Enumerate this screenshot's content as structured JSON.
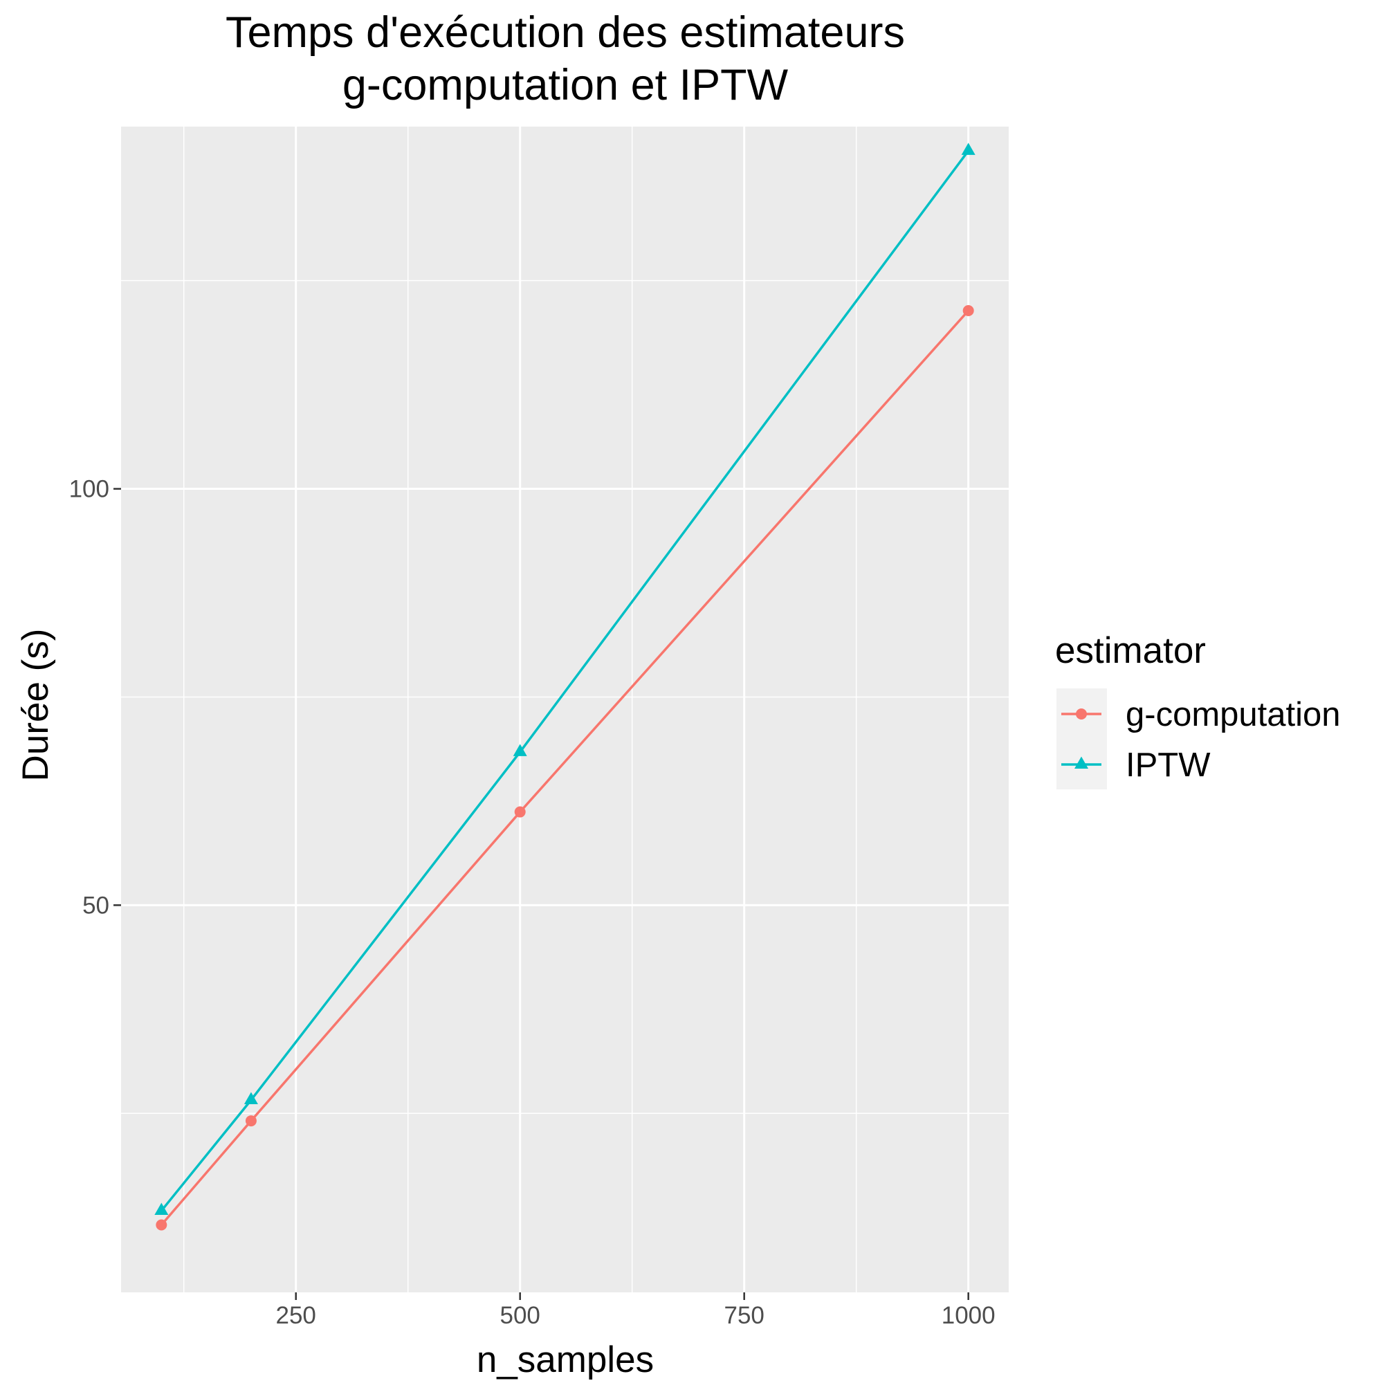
{
  "chart_data": {
    "type": "line",
    "title_lines": [
      "Temps d'exécution des estimateurs",
      "g-computation et IPTW"
    ],
    "xlabel": "n_samples",
    "ylabel": "Durée (s)",
    "x": [
      100,
      200,
      500,
      1000
    ],
    "xlim": [
      55,
      1045
    ],
    "ylim": [
      3.5,
      143.5
    ],
    "x_ticks": [
      250,
      500,
      750,
      1000
    ],
    "x_tick_labels": [
      "250",
      "500",
      "750",
      "1000"
    ],
    "x_minor_ticks": [
      125,
      375,
      625,
      875
    ],
    "y_ticks": [
      50,
      100
    ],
    "y_tick_labels": [
      "50",
      "100"
    ],
    "y_minor_ticks": [
      25,
      75,
      125
    ],
    "grid": true,
    "legend_position": "right",
    "legend_title": "estimator",
    "series": [
      {
        "name": "g-computation",
        "values": [
          11.6,
          24.1,
          61.2,
          121.4
        ],
        "color": "#F8766D",
        "marker": "circle"
      },
      {
        "name": "IPTW",
        "values": [
          13.3,
          26.6,
          68.4,
          140.6
        ],
        "color": "#00BFC4",
        "marker": "triangle"
      }
    ]
  }
}
